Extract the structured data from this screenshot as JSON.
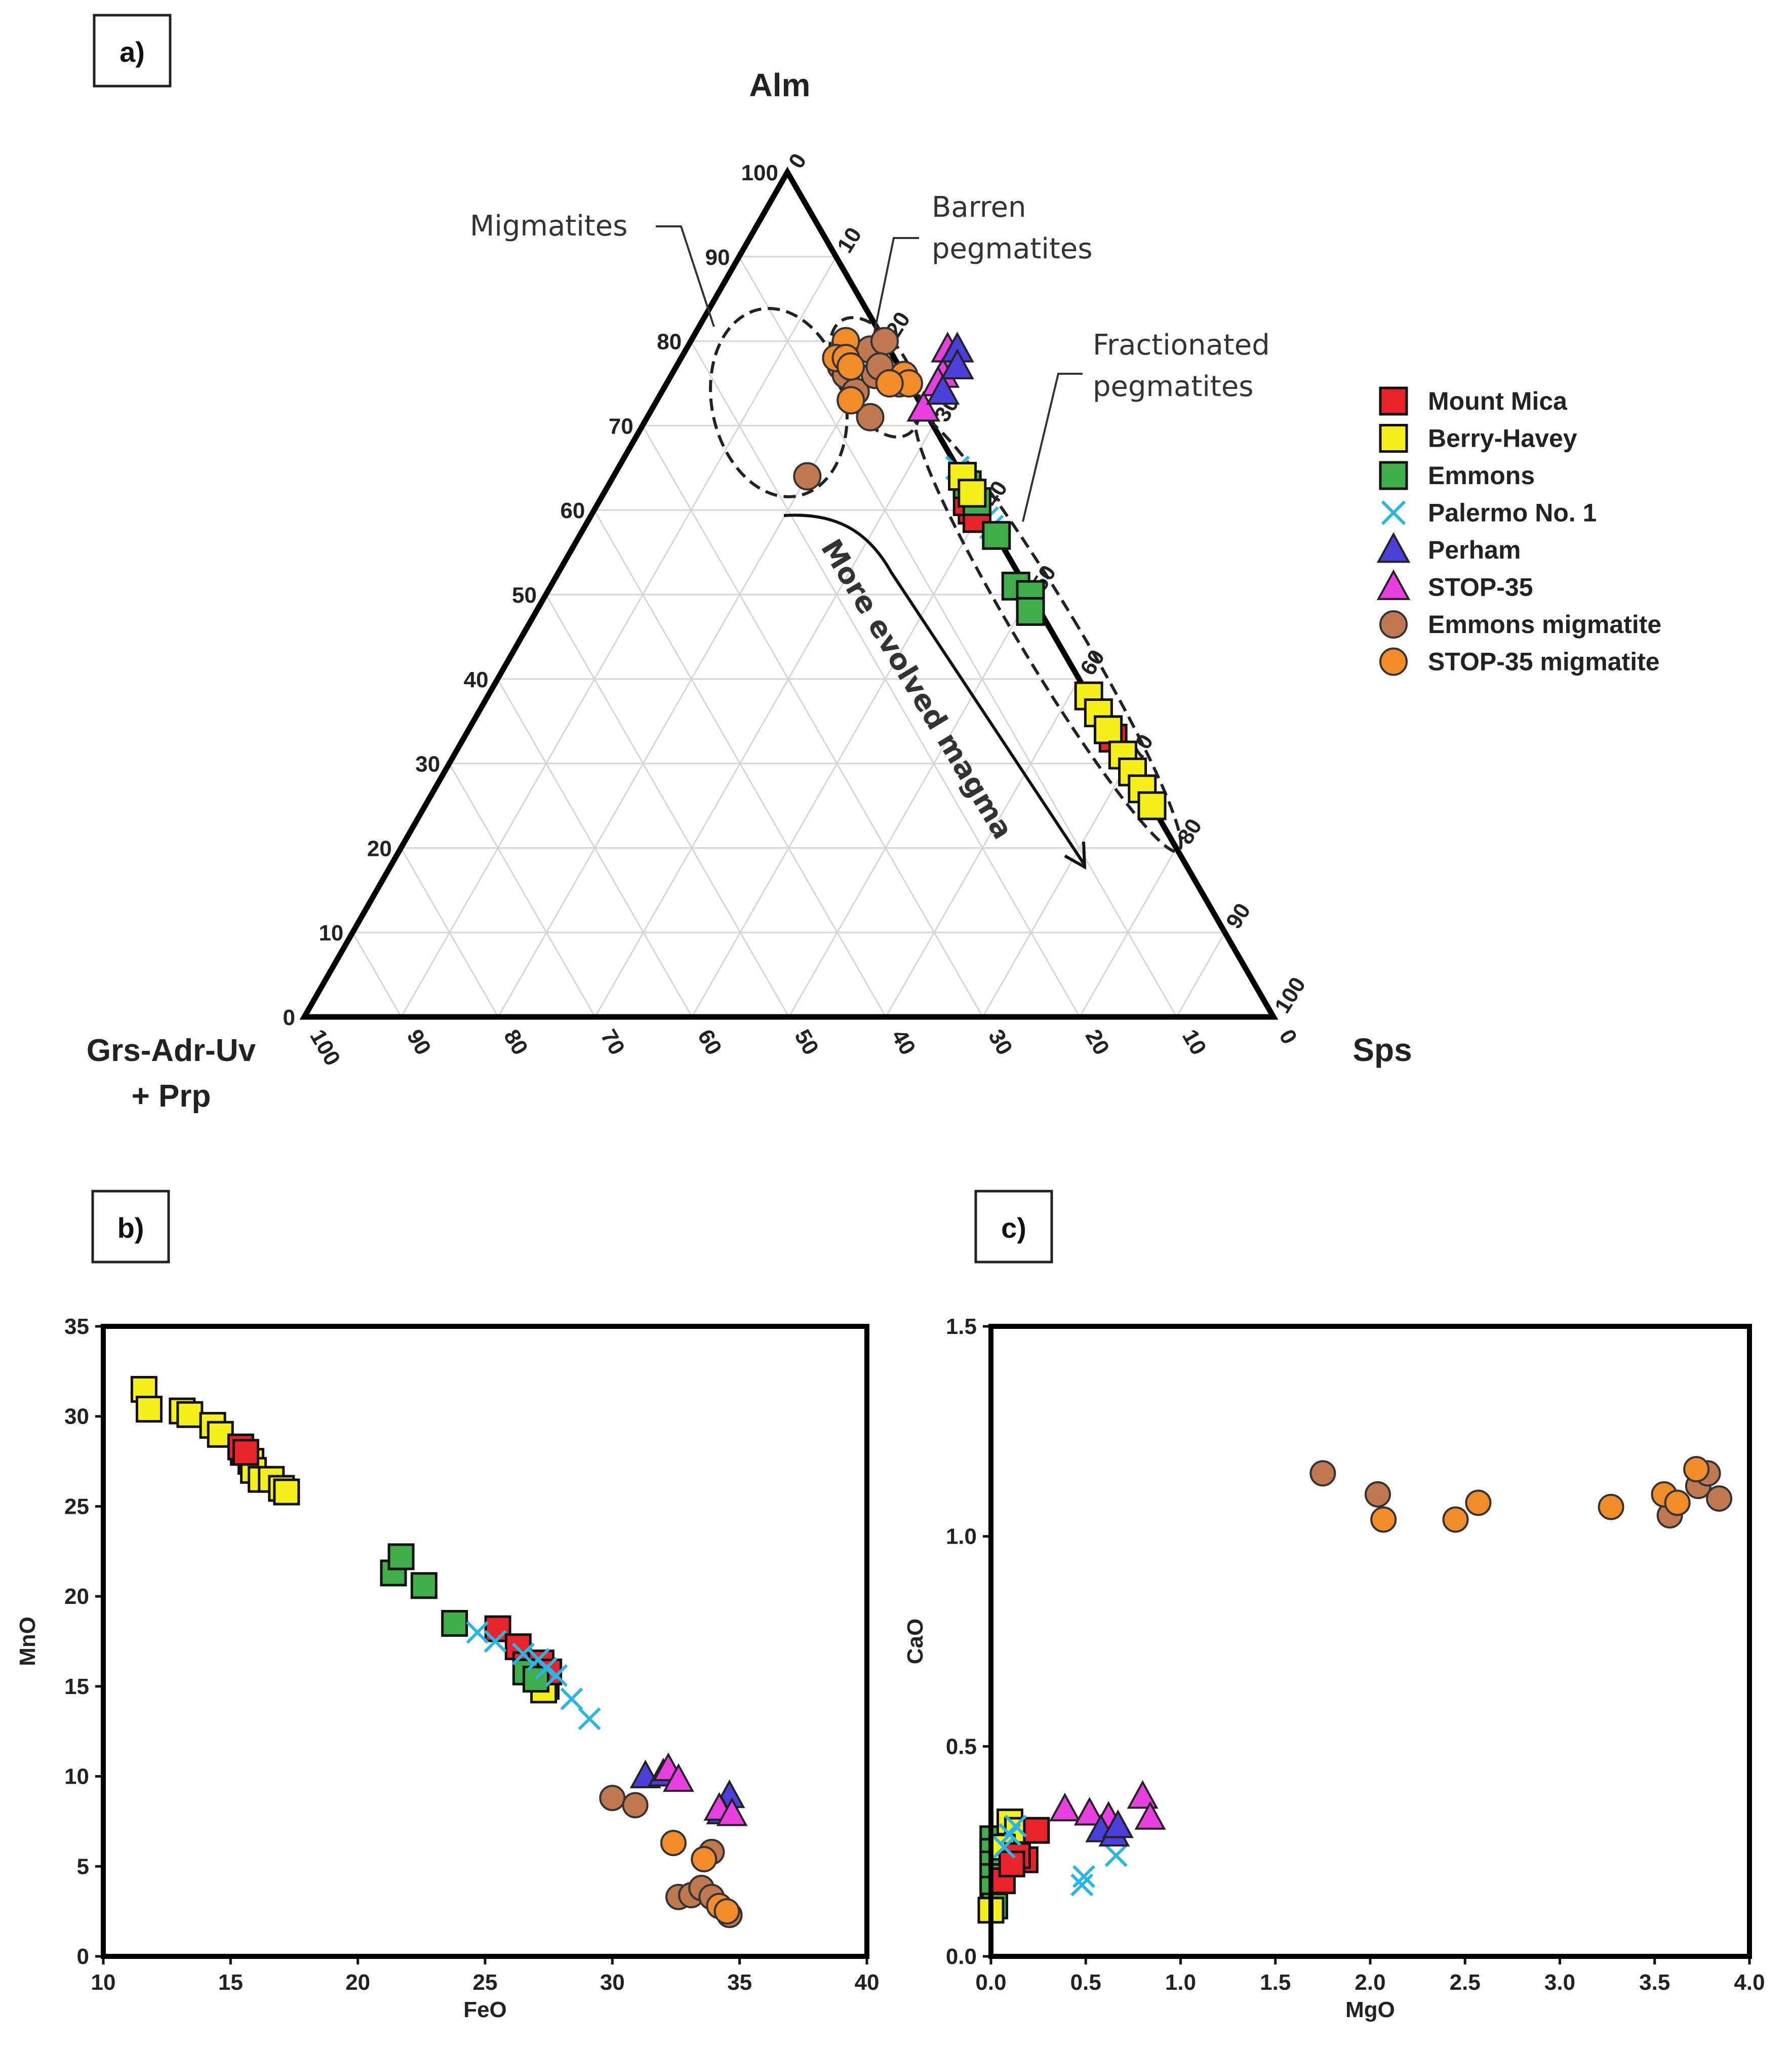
{
  "colors": {
    "Mount Mica": "#e8232a",
    "Berry-Havey": "#f5f01a",
    "Emmons": "#3fae4a",
    "Palermo No. 1": "#29b6e6",
    "Perham": "#4a3fd9",
    "STOP-35": "#e83fe0",
    "Emmons migmatite": "#c07850",
    "STOP-35 migmatite": "#f28c28"
  },
  "legend": [
    {
      "name": "Mount  Mica",
      "series": "Mount Mica",
      "marker": "square"
    },
    {
      "name": "Berry-Havey",
      "series": "Berry-Havey",
      "marker": "square"
    },
    {
      "name": "Emmons",
      "series": "Emmons",
      "marker": "square"
    },
    {
      "name": "Palermo No. 1",
      "series": "Palermo No. 1",
      "marker": "cross"
    },
    {
      "name": "Perham",
      "series": "Perham",
      "marker": "triangle"
    },
    {
      "name": "STOP-35",
      "series": "STOP-35",
      "marker": "triangle"
    },
    {
      "name": "Emmons migmatite",
      "series": "Emmons migmatite",
      "marker": "circle"
    },
    {
      "name": "STOP-35 migmatite",
      "series": "STOP-35 migmatite",
      "marker": "circle"
    }
  ],
  "chart_data": [
    {
      "panel": "a)",
      "type": "scatter",
      "subtype": "ternary",
      "apex_labels": {
        "top": "Alm",
        "left": "Grs-Adr-Uv",
        "left2": "+ Prp",
        "right": "Sps"
      },
      "left_ticks": [
        "0",
        "10",
        "20",
        "30",
        "40",
        "50",
        "60",
        "70",
        "80",
        "90",
        "100"
      ],
      "right_ticks": [
        "0",
        "10",
        "20",
        "30",
        "40",
        "50",
        "60",
        "70",
        "80",
        "90",
        "100"
      ],
      "bottom_ticks": [
        "100",
        "90",
        "80",
        "70",
        "60",
        "50",
        "40",
        "30",
        "20",
        "10",
        "0"
      ],
      "annotations": {
        "migmatites": "Migmatites",
        "barren1": "Barren",
        "barren2": "pegmatites",
        "fract1": "Fractionated",
        "fract2": "pegmatites",
        "arrow": "More evolved magma"
      },
      "series": [
        {
          "name": "Emmons migmatite",
          "points": [
            [
              77,
              17
            ],
            [
              79,
              19
            ],
            [
              76,
              18
            ],
            [
              74,
              20
            ],
            [
              75,
              24
            ],
            [
              71,
              23
            ],
            [
              64,
              20
            ],
            [
              76,
              21
            ],
            [
              80,
              20
            ],
            [
              77,
              21
            ]
          ]
        },
        {
          "name": "STOP-35 migmatite",
          "points": [
            [
              80,
              16
            ],
            [
              78,
              16
            ],
            [
              78,
              17
            ],
            [
              77,
              18
            ],
            [
              73,
              20
            ],
            [
              76,
              24
            ],
            [
              75,
              25
            ],
            [
              75,
              23
            ]
          ]
        },
        {
          "name": "STOP-35",
          "points": [
            [
              79,
              27
            ],
            [
              78,
              28
            ],
            [
              76,
              28
            ],
            [
              75,
              28
            ],
            [
              72,
              28
            ]
          ]
        },
        {
          "name": "Perham",
          "points": [
            [
              79,
              28
            ],
            [
              77,
              29
            ],
            [
              74,
              29
            ]
          ]
        },
        {
          "name": "Palermo No. 1",
          "points": [
            [
              65,
              35
            ],
            [
              64,
              36
            ],
            [
              63,
              37
            ],
            [
              62,
              38
            ],
            [
              61,
              38
            ],
            [
              60,
              39
            ],
            [
              59,
              41
            ],
            [
              58,
              42
            ]
          ]
        },
        {
          "name": "Mount Mica",
          "points": [
            [
              60,
              39
            ],
            [
              61,
              38
            ],
            [
              59,
              40
            ],
            [
              34,
              66
            ],
            [
              33,
              67
            ]
          ]
        },
        {
          "name": "Emmons",
          "points": [
            [
              63,
              37
            ],
            [
              61,
              39
            ],
            [
              57,
              43
            ],
            [
              51,
              48
            ],
            [
              50,
              50
            ],
            [
              48,
              51
            ]
          ]
        },
        {
          "name": "Berry-Havey",
          "points": [
            [
              64,
              36
            ],
            [
              62,
              38
            ],
            [
              38,
              62
            ],
            [
              36,
              64
            ],
            [
              34,
              66
            ],
            [
              31,
              69
            ],
            [
              29,
              71
            ],
            [
              27,
              73
            ],
            [
              25,
              75
            ]
          ]
        }
      ]
    },
    {
      "panel": "b)",
      "type": "scatter",
      "xlabel": "FeO",
      "ylabel": "MnO",
      "xlim": [
        10,
        40
      ],
      "ylim": [
        0,
        35
      ],
      "xticks": [
        10,
        15,
        20,
        25,
        30,
        35,
        40
      ],
      "yticks": [
        0,
        5,
        10,
        15,
        20,
        25,
        30,
        35
      ],
      "series": [
        {
          "name": "Berry-Havey",
          "points": [
            [
              11.6,
              31.5
            ],
            [
              11.8,
              30.4
            ],
            [
              13.1,
              30.3
            ],
            [
              13.4,
              30.1
            ],
            [
              14.3,
              29.5
            ],
            [
              14.6,
              29.0
            ],
            [
              15.5,
              28.0
            ],
            [
              15.8,
              27.5
            ],
            [
              15.9,
              27.0
            ],
            [
              16.2,
              26.5
            ],
            [
              16.6,
              26.5
            ],
            [
              17.0,
              26.0
            ],
            [
              17.2,
              25.8
            ],
            [
              27.4,
              15.0
            ],
            [
              27.3,
              14.8
            ]
          ]
        },
        {
          "name": "Mount Mica",
          "points": [
            [
              15.4,
              28.3
            ],
            [
              15.6,
              28.0
            ],
            [
              25.5,
              18.2
            ],
            [
              26.3,
              17.2
            ],
            [
              26.6,
              16.2
            ],
            [
              27.2,
              16.3
            ],
            [
              27.5,
              15.8
            ]
          ]
        },
        {
          "name": "Emmons",
          "points": [
            [
              21.4,
              21.3
            ],
            [
              21.7,
              22.2
            ],
            [
              22.6,
              20.6
            ],
            [
              23.8,
              18.5
            ],
            [
              26.6,
              15.8
            ],
            [
              27.0,
              15.4
            ]
          ]
        },
        {
          "name": "Palermo No. 1",
          "points": [
            [
              24.7,
              18.0
            ],
            [
              25.4,
              17.5
            ],
            [
              26.5,
              16.8
            ],
            [
              27.1,
              16.5
            ],
            [
              27.4,
              16.0
            ],
            [
              27.8,
              15.6
            ],
            [
              28.4,
              14.3
            ],
            [
              29.1,
              13.2
            ]
          ]
        },
        {
          "name": "Perham",
          "points": [
            [
              31.3,
              10.0
            ],
            [
              32.0,
              10.1
            ],
            [
              34.6,
              8.9
            ],
            [
              34.3,
              8.0
            ]
          ]
        },
        {
          "name": "STOP-35",
          "points": [
            [
              32.2,
              10.4
            ],
            [
              32.6,
              9.8
            ],
            [
              34.2,
              8.2
            ],
            [
              34.7,
              7.9
            ]
          ]
        },
        {
          "name": "Emmons migmatite",
          "points": [
            [
              30.0,
              8.8
            ],
            [
              30.9,
              8.4
            ],
            [
              32.6,
              3.3
            ],
            [
              33.1,
              3.4
            ],
            [
              33.5,
              3.8
            ],
            [
              33.9,
              3.3
            ],
            [
              34.6,
              2.3
            ],
            [
              33.9,
              5.8
            ]
          ]
        },
        {
          "name": "STOP-35 migmatite",
          "points": [
            [
              32.4,
              6.3
            ],
            [
              33.6,
              5.4
            ],
            [
              34.2,
              2.8
            ],
            [
              34.5,
              2.5
            ]
          ]
        }
      ]
    },
    {
      "panel": "c)",
      "type": "scatter",
      "xlabel": "MgO",
      "ylabel": "CaO",
      "xlim": [
        0.0,
        4.0
      ],
      "ylim": [
        0.0,
        1.5
      ],
      "xticks": [
        0.0,
        0.5,
        1.0,
        1.5,
        2.0,
        2.5,
        3.0,
        3.5,
        4.0
      ],
      "yticks": [
        0.0,
        0.5,
        1.0,
        1.5
      ],
      "series": [
        {
          "name": "Emmons",
          "points": [
            [
              0.01,
              0.28
            ],
            [
              0.01,
              0.25
            ],
            [
              0.01,
              0.22
            ],
            [
              0.01,
              0.19
            ],
            [
              0.01,
              0.16
            ],
            [
              0.02,
              0.12
            ]
          ]
        },
        {
          "name": "Berry-Havey",
          "points": [
            [
              0.0,
              0.11
            ],
            [
              0.1,
              0.32
            ],
            [
              0.14,
              0.3
            ],
            [
              0.06,
              0.26
            ]
          ]
        },
        {
          "name": "Mount Mica",
          "points": [
            [
              0.06,
              0.18
            ],
            [
              0.18,
              0.23
            ],
            [
              0.14,
              0.24
            ],
            [
              0.24,
              0.3
            ],
            [
              0.11,
              0.22
            ]
          ]
        },
        {
          "name": "Palermo No. 1",
          "points": [
            [
              0.07,
              0.26
            ],
            [
              0.1,
              0.29
            ],
            [
              0.13,
              0.31
            ],
            [
              0.48,
              0.17
            ],
            [
              0.49,
              0.19
            ],
            [
              0.66,
              0.24
            ]
          ]
        },
        {
          "name": "STOP-35",
          "points": [
            [
              0.39,
              0.35
            ],
            [
              0.52,
              0.34
            ],
            [
              0.62,
              0.33
            ],
            [
              0.8,
              0.38
            ],
            [
              0.84,
              0.33
            ]
          ]
        },
        {
          "name": "Perham",
          "points": [
            [
              0.58,
              0.3
            ],
            [
              0.65,
              0.29
            ],
            [
              0.67,
              0.31
            ]
          ]
        },
        {
          "name": "Emmons migmatite",
          "points": [
            [
              1.75,
              1.15
            ],
            [
              2.04,
              1.1
            ],
            [
              3.58,
              1.05
            ],
            [
              3.73,
              1.12
            ],
            [
              3.78,
              1.15
            ],
            [
              3.84,
              1.09
            ]
          ]
        },
        {
          "name": "STOP-35 migmatite",
          "points": [
            [
              2.07,
              1.04
            ],
            [
              2.45,
              1.04
            ],
            [
              2.57,
              1.08
            ],
            [
              3.27,
              1.07
            ],
            [
              3.55,
              1.1
            ],
            [
              3.62,
              1.08
            ],
            [
              3.72,
              1.16
            ]
          ]
        }
      ]
    }
  ]
}
